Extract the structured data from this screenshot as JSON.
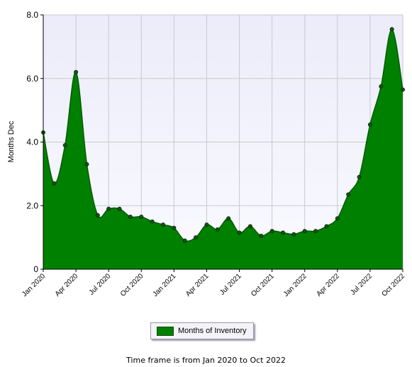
{
  "chart_data": {
    "type": "area",
    "ylabel": "Months Dec",
    "xlabel": "",
    "ylim": [
      0,
      8
    ],
    "yticks": [
      "0",
      "2.0",
      "4.0",
      "6.0",
      "8.0"
    ],
    "xtick_labels": [
      "Jan 2020",
      "Apr 2020",
      "Jul 2020",
      "Oct 2020",
      "Jan 2021",
      "Apr 2021",
      "Jul 2021",
      "Oct 2021",
      "Jan 2022",
      "Apr 2022",
      "Jul 2022",
      "Oct 2022"
    ],
    "grid": true,
    "legend_position": "bottom",
    "series": [
      {
        "name": "Months of Inventory",
        "color": "#008000",
        "x": [
          "2020-01",
          "2020-02",
          "2020-03",
          "2020-04",
          "2020-05",
          "2020-06",
          "2020-07",
          "2020-08",
          "2020-09",
          "2020-10",
          "2020-11",
          "2020-12",
          "2021-01",
          "2021-02",
          "2021-03",
          "2021-04",
          "2021-05",
          "2021-06",
          "2021-07",
          "2021-08",
          "2021-09",
          "2021-10",
          "2021-11",
          "2021-12",
          "2022-01",
          "2022-02",
          "2022-03",
          "2022-04",
          "2022-05",
          "2022-06",
          "2022-07",
          "2022-08",
          "2022-09",
          "2022-10"
        ],
        "values": [
          4.3,
          2.7,
          3.9,
          6.2,
          3.3,
          1.7,
          1.9,
          1.9,
          1.65,
          1.65,
          1.5,
          1.4,
          1.3,
          0.9,
          1.0,
          1.4,
          1.25,
          1.6,
          1.15,
          1.35,
          1.05,
          1.2,
          1.15,
          1.1,
          1.2,
          1.2,
          1.35,
          1.6,
          2.35,
          2.9,
          4.55,
          5.75,
          7.55,
          5.65
        ]
      }
    ]
  },
  "legend": {
    "label": "Months of Inventory"
  },
  "footer": {
    "text": "Time frame is from Jan 2020 to Oct 2022"
  }
}
